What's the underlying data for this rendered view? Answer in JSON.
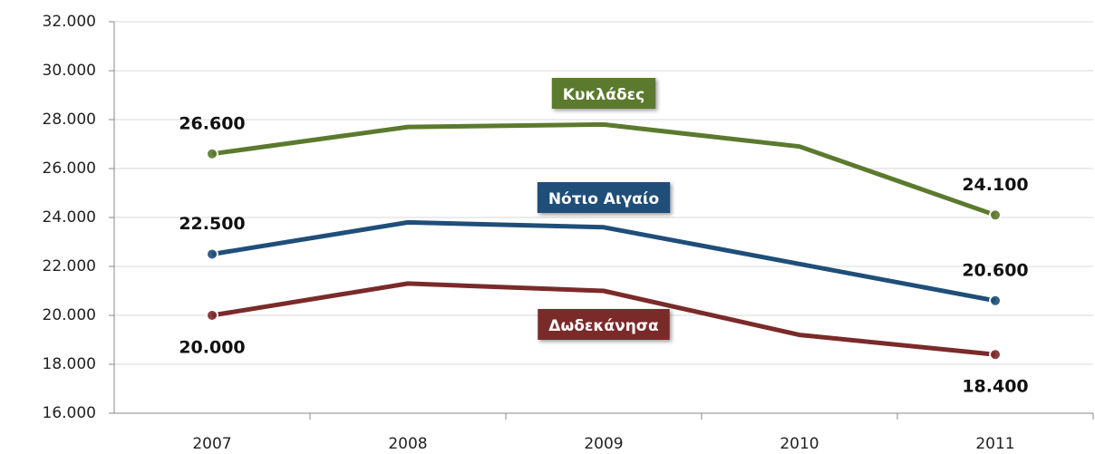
{
  "chart_data": {
    "type": "line",
    "categories": [
      "2007",
      "2008",
      "2009",
      "2010",
      "2011"
    ],
    "series": [
      {
        "name": "Κυκλάδες",
        "color": "#5b7a2e",
        "values": [
          26600,
          27700,
          27800,
          26900,
          24100
        ],
        "value_labels": [
          "26.600",
          null,
          null,
          null,
          "24.100"
        ]
      },
      {
        "name": "Νότιο Αιγαίο",
        "color": "#1f4e79",
        "values": [
          22500,
          23800,
          23600,
          22100,
          20600
        ],
        "value_labels": [
          "22.500",
          null,
          null,
          null,
          "20.600"
        ]
      },
      {
        "name": "Δωδεκάνησα",
        "color": "#7b2a2a",
        "values": [
          20000,
          21300,
          21000,
          19200,
          18400
        ],
        "value_labels": [
          "20.000",
          null,
          null,
          null,
          "18.400"
        ]
      }
    ],
    "ylim": [
      16000,
      32000
    ],
    "yticks": [
      {
        "value": 16000,
        "label": "16.000"
      },
      {
        "value": 18000,
        "label": "18.000"
      },
      {
        "value": 20000,
        "label": "20.000"
      },
      {
        "value": 22000,
        "label": "22.000"
      },
      {
        "value": 24000,
        "label": "24.000"
      },
      {
        "value": 26000,
        "label": "26.000"
      },
      {
        "value": 28000,
        "label": "28.000"
      },
      {
        "value": 30000,
        "label": "30.000"
      },
      {
        "value": 32000,
        "label": "32.000"
      }
    ],
    "grid": true
  }
}
